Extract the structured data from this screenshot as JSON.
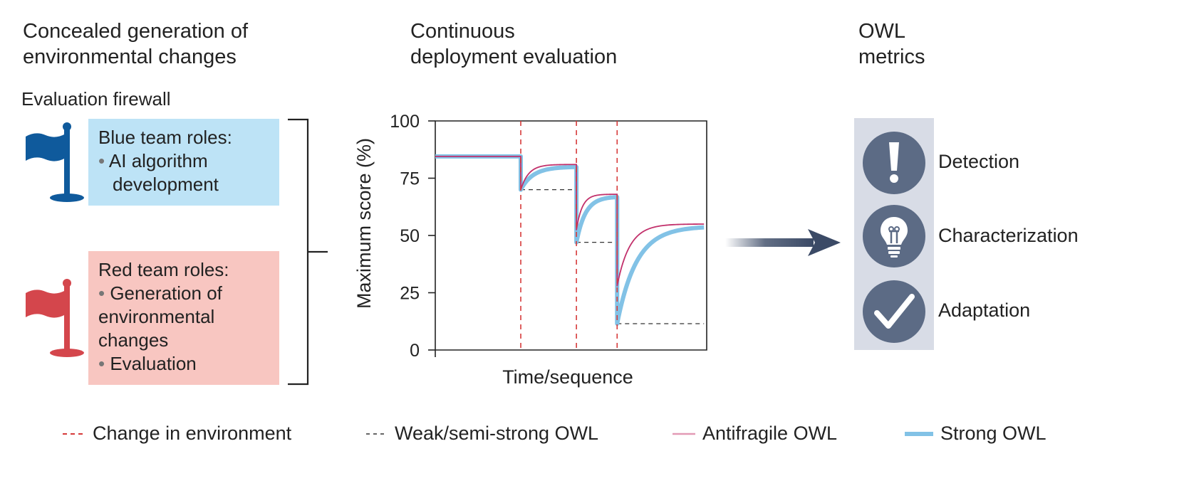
{
  "sections": {
    "left_heading": [
      "Concealed generation of",
      "environmental changes"
    ],
    "middle_heading": [
      "Continuous",
      "deployment evaluation"
    ],
    "right_heading": [
      "OWL",
      "metrics"
    ]
  },
  "firewall_label": "Evaluation firewall",
  "blue_team": {
    "title": "Blue team roles:",
    "items": [
      "AI algorithm",
      "development"
    ]
  },
  "red_team": {
    "title": "Red team roles:",
    "items": [
      "Generation of",
      "environmental",
      "changes",
      "Evaluation"
    ]
  },
  "colors": {
    "blue_flag": "#0f5a9c",
    "red_flag": "#d4464c",
    "change_line": "#d63a3a",
    "antifragile": "#c2306b",
    "strong": "#82c2e6",
    "metric_circle": "#5c6b85",
    "metric_panel": "#d8dce6",
    "arrow": "#3b4a66"
  },
  "chart_data": {
    "type": "line",
    "xlabel": "Time/sequence",
    "ylabel": "Maximum score (%)",
    "ylim": [
      0,
      100
    ],
    "yticks": [
      0,
      25,
      50,
      75,
      100
    ],
    "xlim": [
      0,
      100
    ],
    "change_points": [
      31.5,
      52,
      67
    ],
    "baseline": 84.5,
    "segments": [
      {
        "start": 31.5,
        "end": 52,
        "drop": 70,
        "antifragile_recover": 81,
        "strong_recover": 80,
        "weak_level": 70
      },
      {
        "start": 52,
        "end": 67,
        "drop": 52.5,
        "strong_drop": 47,
        "antifragile_recover": 68,
        "strong_recover": 67,
        "weak_level": 47
      },
      {
        "start": 67,
        "end": 99,
        "drop": 28,
        "strong_drop": 11.5,
        "antifragile_recover": 55,
        "strong_recover": 54,
        "weak_level": 11.5
      }
    ]
  },
  "metrics": [
    {
      "label": "Detection",
      "icon": "exclamation-icon"
    },
    {
      "label": "Characterization",
      "icon": "lightbulb-icon"
    },
    {
      "label": "Adaptation",
      "icon": "checkmark-icon"
    }
  ],
  "legend": [
    {
      "label": "Change in environment",
      "style": "red-dashed"
    },
    {
      "label": "Weak/semi-strong OWL",
      "style": "black-dashed"
    },
    {
      "label": "Antifragile OWL",
      "style": "pink-solid"
    },
    {
      "label": "Strong OWL",
      "style": "blue-thick"
    }
  ]
}
